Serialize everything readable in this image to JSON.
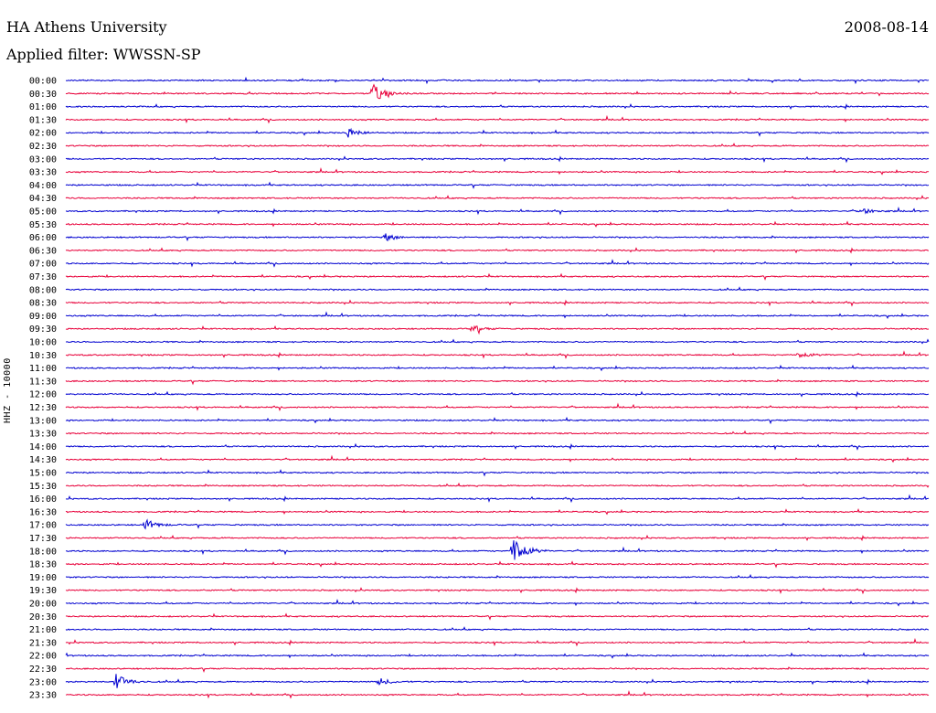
{
  "header": {
    "title": "HA Athens University",
    "date": "2008-08-14",
    "filter": "Applied filter: WWSSN-SP"
  },
  "channel_label": "HHZ - 10000",
  "colors": {
    "blue": "#0000d0",
    "red": "#e8003a",
    "text": "#000000"
  },
  "time_labels": [
    "00:00",
    "00:30",
    "01:00",
    "01:30",
    "02:00",
    "02:30",
    "03:00",
    "03:30",
    "04:00",
    "04:30",
    "05:00",
    "05:30",
    "06:00",
    "06:30",
    "07:00",
    "07:30",
    "08:00",
    "08:30",
    "09:00",
    "09:30",
    "10:00",
    "10:30",
    "11:00",
    "11:30",
    "12:00",
    "12:30",
    "13:00",
    "13:30",
    "14:00",
    "14:30",
    "15:00",
    "15:30",
    "16:00",
    "16:30",
    "17:00",
    "17:30",
    "18:00",
    "18:30",
    "19:00",
    "19:30",
    "20:00",
    "20:30",
    "21:00",
    "21:30",
    "22:00",
    "22:30",
    "23:00",
    "23:30"
  ],
  "events": [
    {
      "row": 1,
      "position": 0.355,
      "amplitude": 11,
      "color": "red"
    },
    {
      "row": 4,
      "position": 0.327,
      "amplitude": 5,
      "color": "blue"
    },
    {
      "row": 10,
      "position": 0.92,
      "amplitude": 4,
      "color": "blue"
    },
    {
      "row": 12,
      "position": 0.37,
      "amplitude": 4,
      "color": "blue"
    },
    {
      "row": 19,
      "position": 0.47,
      "amplitude": 4,
      "color": "red"
    },
    {
      "row": 21,
      "position": 0.85,
      "amplitude": 4,
      "color": "red"
    },
    {
      "row": 34,
      "position": 0.092,
      "amplitude": 6,
      "color": "blue"
    },
    {
      "row": 36,
      "position": 0.518,
      "amplitude": 22,
      "color": "blue"
    },
    {
      "row": 46,
      "position": 0.058,
      "amplitude": 9,
      "color": "blue"
    },
    {
      "row": 46,
      "position": 0.363,
      "amplitude": 4,
      "color": "blue"
    }
  ]
}
